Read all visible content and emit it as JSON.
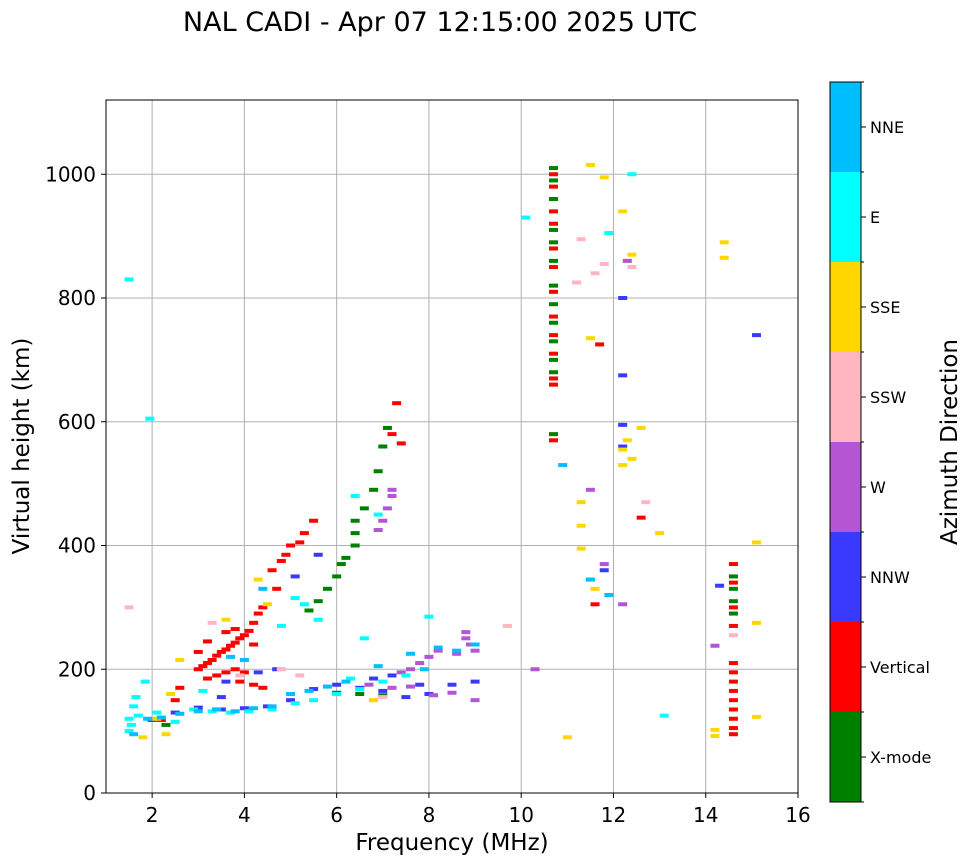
{
  "chart_data": {
    "type": "scatter",
    "title": "NAL CADI - Apr 07 12:15:00 2025 UTC",
    "xlabel": "Frequency (MHz)",
    "ylabel": "Virtual height (km)",
    "xlim": [
      1,
      16
    ],
    "ylim": [
      0,
      1120
    ],
    "xticks": [
      2,
      4,
      6,
      8,
      10,
      12,
      14,
      16
    ],
    "yticks": [
      0,
      200,
      400,
      600,
      800,
      1000
    ],
    "grid": true,
    "colorbar": {
      "label": "Azimuth Direction",
      "entries": [
        {
          "name": "X-mode",
          "color": "#008000"
        },
        {
          "name": "Vertical",
          "color": "#ff0000"
        },
        {
          "name": "NNW",
          "color": "#3a3aff"
        },
        {
          "name": "W",
          "color": "#b455d4"
        },
        {
          "name": "SSW",
          "color": "#ffb6c1"
        },
        {
          "name": "SSE",
          "color": "#ffd700"
        },
        {
          "name": "E",
          "color": "#00ffff"
        },
        {
          "name": "NNE",
          "color": "#00bfff"
        }
      ]
    },
    "series": [
      {
        "name": "X-mode",
        "points": [
          [
            10.7,
            1010
          ],
          [
            10.7,
            990
          ],
          [
            10.7,
            960
          ],
          [
            10.7,
            910
          ],
          [
            10.7,
            890
          ],
          [
            10.7,
            860
          ],
          [
            10.7,
            820
          ],
          [
            10.7,
            790
          ],
          [
            10.7,
            760
          ],
          [
            10.7,
            730
          ],
          [
            10.7,
            700
          ],
          [
            10.7,
            680
          ],
          [
            10.7,
            580
          ],
          [
            14.6,
            350
          ],
          [
            14.6,
            330
          ],
          [
            14.6,
            310
          ],
          [
            14.6,
            290
          ],
          [
            6.4,
            440
          ],
          [
            6.4,
            420
          ],
          [
            6.4,
            400
          ],
          [
            6.6,
            460
          ],
          [
            6.8,
            490
          ],
          [
            6.9,
            520
          ],
          [
            7.0,
            560
          ],
          [
            7.1,
            590
          ],
          [
            5.8,
            330
          ],
          [
            5.6,
            310
          ],
          [
            5.4,
            295
          ],
          [
            6.0,
            350
          ],
          [
            6.1,
            370
          ],
          [
            6.2,
            380
          ],
          [
            6.5,
            160
          ],
          [
            6.0,
            162
          ],
          [
            7.0,
            158
          ],
          [
            3.4,
            135
          ],
          [
            2.3,
            110
          ]
        ]
      },
      {
        "name": "Vertical",
        "points": [
          [
            10.7,
            1000
          ],
          [
            10.7,
            980
          ],
          [
            10.7,
            940
          ],
          [
            10.7,
            920
          ],
          [
            10.7,
            880
          ],
          [
            10.7,
            850
          ],
          [
            10.7,
            810
          ],
          [
            10.7,
            770
          ],
          [
            10.7,
            740
          ],
          [
            10.7,
            710
          ],
          [
            10.7,
            670
          ],
          [
            10.7,
            660
          ],
          [
            10.7,
            570
          ],
          [
            14.6,
            370
          ],
          [
            14.6,
            340
          ],
          [
            14.6,
            300
          ],
          [
            14.6,
            270
          ],
          [
            14.6,
            210
          ],
          [
            14.6,
            195
          ],
          [
            14.6,
            180
          ],
          [
            14.6,
            165
          ],
          [
            14.6,
            150
          ],
          [
            14.6,
            135
          ],
          [
            14.6,
            120
          ],
          [
            14.6,
            105
          ],
          [
            14.6,
            95
          ],
          [
            12.6,
            445
          ],
          [
            11.7,
            725
          ],
          [
            11.6,
            305
          ],
          [
            7.3,
            630
          ],
          [
            7.4,
            565
          ],
          [
            7.2,
            580
          ],
          [
            5.0,
            400
          ],
          [
            4.9,
            385
          ],
          [
            5.2,
            405
          ],
          [
            4.8,
            375
          ],
          [
            4.6,
            360
          ],
          [
            4.7,
            330
          ],
          [
            4.4,
            300
          ],
          [
            4.3,
            290
          ],
          [
            4.2,
            275
          ],
          [
            4.1,
            262
          ],
          [
            4.0,
            255
          ],
          [
            3.9,
            250
          ],
          [
            3.8,
            243
          ],
          [
            3.7,
            238
          ],
          [
            3.6,
            232
          ],
          [
            3.5,
            228
          ],
          [
            3.4,
            222
          ],
          [
            3.3,
            215
          ],
          [
            3.2,
            210
          ],
          [
            3.1,
            205
          ],
          [
            3.0,
            200
          ],
          [
            3.2,
            185
          ],
          [
            3.4,
            190
          ],
          [
            3.6,
            195
          ],
          [
            3.8,
            200
          ],
          [
            4.0,
            195
          ],
          [
            4.2,
            175
          ],
          [
            4.4,
            170
          ],
          [
            3.6,
            260
          ],
          [
            3.8,
            265
          ],
          [
            4.2,
            240
          ],
          [
            3.0,
            228
          ],
          [
            3.2,
            245
          ],
          [
            2.6,
            170
          ],
          [
            2.5,
            150
          ],
          [
            2.2,
            118
          ],
          [
            3.9,
            180
          ],
          [
            5.5,
            440
          ],
          [
            5.3,
            420
          ]
        ]
      },
      {
        "name": "NNW",
        "points": [
          [
            12.2,
            800
          ],
          [
            12.2,
            675
          ],
          [
            12.2,
            595
          ],
          [
            12.2,
            560
          ],
          [
            11.8,
            360
          ],
          [
            15.1,
            740
          ],
          [
            14.3,
            335
          ],
          [
            9.0,
            180
          ],
          [
            8.5,
            175
          ],
          [
            8.0,
            160
          ],
          [
            7.5,
            155
          ],
          [
            7.0,
            165
          ],
          [
            6.5,
            170
          ],
          [
            6.0,
            175
          ],
          [
            5.5,
            168
          ],
          [
            5.0,
            150
          ],
          [
            4.5,
            140
          ],
          [
            4.0,
            137
          ],
          [
            3.5,
            135
          ],
          [
            3.0,
            138
          ],
          [
            2.5,
            130
          ],
          [
            2.0,
            118
          ],
          [
            6.8,
            185
          ],
          [
            7.2,
            190
          ],
          [
            7.8,
            175
          ],
          [
            4.7,
            200
          ],
          [
            4.3,
            195
          ],
          [
            3.6,
            180
          ],
          [
            5.6,
            385
          ],
          [
            5.1,
            350
          ],
          [
            3.5,
            155
          ]
        ]
      },
      {
        "name": "W",
        "points": [
          [
            12.3,
            860
          ],
          [
            11.5,
            490
          ],
          [
            11.8,
            370
          ],
          [
            12.2,
            305
          ],
          [
            14.2,
            238
          ],
          [
            10.3,
            200
          ],
          [
            8.8,
            260
          ],
          [
            8.8,
            250
          ],
          [
            8.9,
            240
          ],
          [
            9.0,
            230
          ],
          [
            8.6,
            225
          ],
          [
            8.2,
            230
          ],
          [
            8.0,
            220
          ],
          [
            7.8,
            210
          ],
          [
            7.6,
            200
          ],
          [
            7.4,
            195
          ],
          [
            7.2,
            170
          ],
          [
            9.0,
            150
          ],
          [
            8.5,
            162
          ],
          [
            8.1,
            158
          ],
          [
            7.6,
            172
          ],
          [
            6.9,
            425
          ],
          [
            7.0,
            440
          ],
          [
            7.1,
            460
          ],
          [
            7.2,
            480
          ],
          [
            7.2,
            490
          ],
          [
            6.7,
            175
          ]
        ]
      },
      {
        "name": "SSW",
        "points": [
          [
            11.3,
            895
          ],
          [
            12.4,
            850
          ],
          [
            11.8,
            855
          ],
          [
            11.6,
            840
          ],
          [
            11.2,
            825
          ],
          [
            12.7,
            470
          ],
          [
            14.6,
            255
          ],
          [
            9.7,
            270
          ],
          [
            7.0,
            155
          ],
          [
            4.8,
            200
          ],
          [
            5.2,
            190
          ],
          [
            3.9,
            190
          ],
          [
            1.5,
            300
          ],
          [
            3.3,
            275
          ],
          [
            6.8,
            150
          ]
        ]
      },
      {
        "name": "SSE",
        "points": [
          [
            11.5,
            1015
          ],
          [
            11.8,
            995
          ],
          [
            12.2,
            940
          ],
          [
            12.4,
            870
          ],
          [
            14.4,
            890
          ],
          [
            14.4,
            865
          ],
          [
            11.5,
            735
          ],
          [
            12.3,
            570
          ],
          [
            12.6,
            590
          ],
          [
            12.2,
            555
          ],
          [
            12.4,
            540
          ],
          [
            12.2,
            530
          ],
          [
            11.3,
            470
          ],
          [
            11.3,
            432
          ],
          [
            13.0,
            420
          ],
          [
            11.3,
            395
          ],
          [
            15.1,
            405
          ],
          [
            15.1,
            275
          ],
          [
            15.1,
            123
          ],
          [
            14.2,
            102
          ],
          [
            14.2,
            92
          ],
          [
            11.0,
            90
          ],
          [
            11.6,
            330
          ],
          [
            4.3,
            345
          ],
          [
            4.5,
            305
          ],
          [
            3.6,
            280
          ],
          [
            2.6,
            215
          ],
          [
            2.4,
            160
          ],
          [
            1.8,
            90
          ],
          [
            2.3,
            95
          ],
          [
            2.1,
            120
          ],
          [
            6.8,
            150
          ]
        ]
      },
      {
        "name": "E",
        "points": [
          [
            12.4,
            1000
          ],
          [
            10.1,
            930
          ],
          [
            11.9,
            905
          ],
          [
            1.5,
            830
          ],
          [
            1.95,
            605
          ],
          [
            11.5,
            345
          ],
          [
            13.1,
            125
          ],
          [
            6.6,
            250
          ],
          [
            5.6,
            280
          ],
          [
            5.3,
            305
          ],
          [
            5.1,
            315
          ],
          [
            4.8,
            270
          ],
          [
            1.5,
            120
          ],
          [
            1.55,
            110
          ],
          [
            1.6,
            140
          ],
          [
            1.65,
            155
          ],
          [
            1.5,
            100
          ],
          [
            1.7,
            125
          ],
          [
            2.5,
            115
          ],
          [
            2.9,
            135
          ],
          [
            3.3,
            132
          ],
          [
            3.7,
            130
          ],
          [
            4.1,
            132
          ],
          [
            4.6,
            135
          ],
          [
            5.1,
            145
          ],
          [
            5.5,
            150
          ],
          [
            6.0,
            160
          ],
          [
            6.5,
            168
          ],
          [
            7.0,
            180
          ],
          [
            7.5,
            190
          ],
          [
            6.3,
            185
          ],
          [
            3.1,
            165
          ],
          [
            6.9,
            450
          ],
          [
            6.4,
            480
          ],
          [
            8.0,
            285
          ],
          [
            1.85,
            180
          ],
          [
            2.1,
            130
          ]
        ]
      },
      {
        "name": "NNE",
        "points": [
          [
            11.9,
            320
          ],
          [
            10.9,
            530
          ],
          [
            11.5,
            345
          ],
          [
            9.0,
            240
          ],
          [
            8.6,
            230
          ],
          [
            8.2,
            235
          ],
          [
            7.6,
            225
          ],
          [
            6.2,
            180
          ],
          [
            5.8,
            172
          ],
          [
            5.4,
            165
          ],
          [
            5.0,
            160
          ],
          [
            4.6,
            140
          ],
          [
            4.2,
            137
          ],
          [
            3.8,
            132
          ],
          [
            3.4,
            135
          ],
          [
            3.0,
            132
          ],
          [
            2.6,
            128
          ],
          [
            2.2,
            122
          ],
          [
            1.9,
            120
          ],
          [
            1.6,
            95
          ],
          [
            7.9,
            200
          ],
          [
            4.4,
            330
          ],
          [
            4.0,
            215
          ],
          [
            3.7,
            220
          ],
          [
            6.9,
            205
          ]
        ]
      }
    ]
  }
}
